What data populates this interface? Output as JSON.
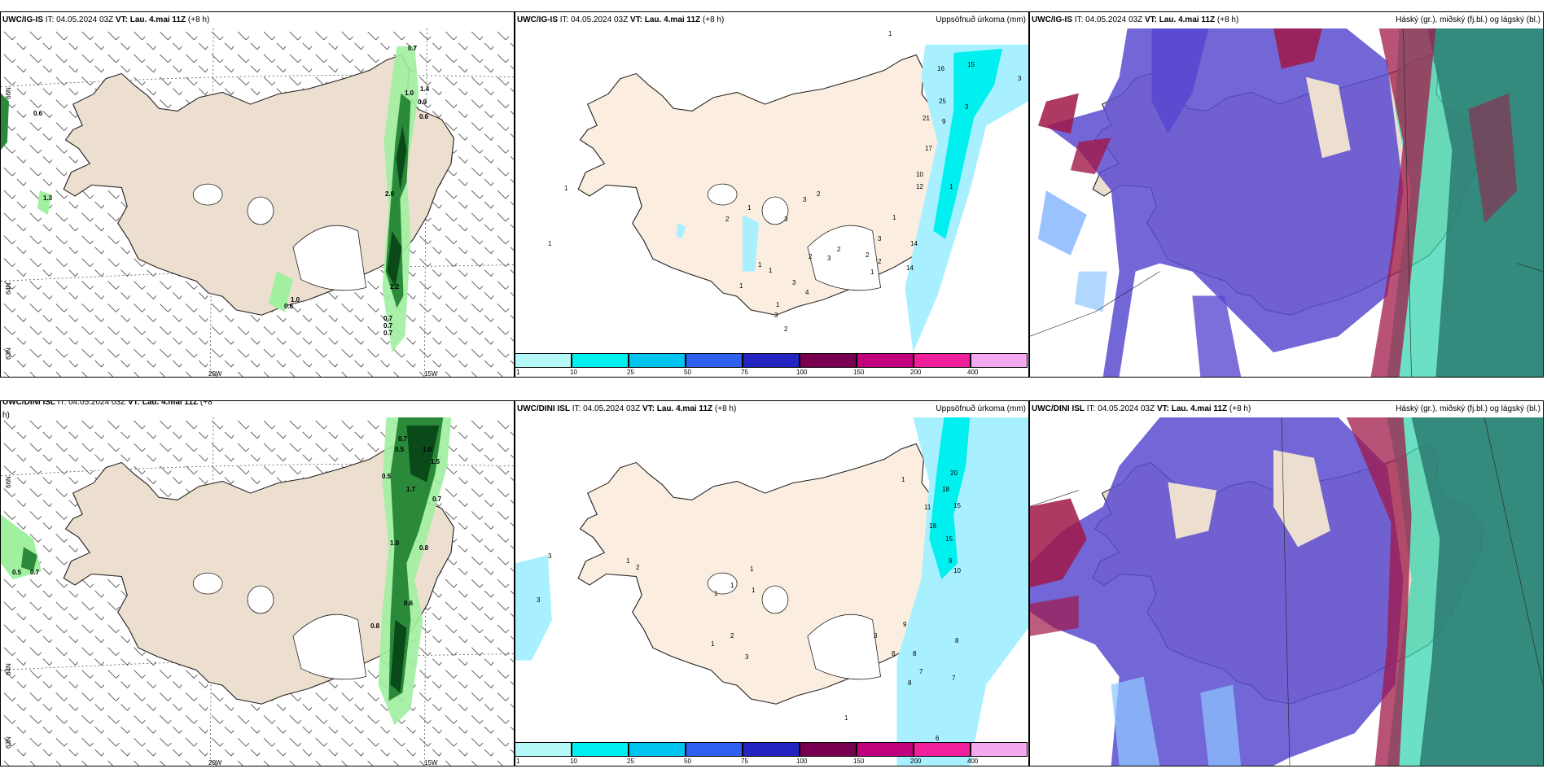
{
  "panels": [
    {
      "header": {
        "model": "UWC/IG-IS",
        "it_label": "IT:",
        "it": "04.05.2024 03Z",
        "vt_label": "VT:",
        "vt": "Lau. 4.mai 11Z",
        "lead": "(+8 h)",
        "right": ""
      },
      "lat_labels": [
        "66N",
        "64N",
        "63N"
      ],
      "lon_labels": [
        "20W",
        "15W"
      ]
    },
    {
      "header": {
        "model": "UWC/IG-IS",
        "it_label": "IT:",
        "it": "04.05.2024 03Z",
        "vt_label": "VT:",
        "vt": "Lau. 4.mai 11Z",
        "lead": "(+8 h)",
        "right": "Uppsöfnuð úrkoma (mm)"
      }
    },
    {
      "header": {
        "model": "UWC/IG-IS",
        "it_label": "IT:",
        "it": "04.05.2024 03Z",
        "vt_label": "VT:",
        "vt": "Lau. 4.mai 11Z",
        "lead": "(+8 h)",
        "right": "Háský (gr.), miðský (fj.bl.) og lágský (bl.)"
      }
    },
    {
      "header": {
        "model": "UWC/DINI ISL",
        "it_label": "IT:",
        "it": "04.05.2024 03Z",
        "vt_label": "VT:",
        "vt": "Lau. 4.mai 11Z",
        "lead": "(+8",
        "right": ""
      },
      "continuation": "h)",
      "lat_labels": [
        "66N",
        "64N",
        "63N"
      ],
      "lon_labels": [
        "20W",
        "15W"
      ]
    },
    {
      "header": {
        "model": "UWC/DINI ISL",
        "it_label": "IT:",
        "it": "04.05.2024 03Z",
        "vt_label": "VT:",
        "vt": "Lau. 4.mai 11Z",
        "lead": "(+8 h)",
        "right": "Uppsöfnuð úrkoma (mm)"
      }
    },
    {
      "header": {
        "model": "UWC/DINI ISL",
        "it_label": "IT:",
        "it": "04.05.2024 03Z",
        "vt_label": "VT:",
        "vt": "Lau. 4.mai 11Z",
        "lead": "(+8 h)",
        "right": "Háský (gr.), miðský (fj.bl.) og lágský (bl.)"
      }
    }
  ],
  "precip_colorbar": {
    "ticks": [
      "1",
      "10",
      "25",
      "50",
      "75",
      "100",
      "150",
      "200",
      "400"
    ],
    "colors": [
      "#b4f8f8",
      "#00f0f0",
      "#00c4f0",
      "#3060f0",
      "#2424c0",
      "#780050",
      "#c0007c",
      "#f0209c",
      "#f4a8f0"
    ]
  },
  "colors": {
    "land": "#eddfd0",
    "land_light": "#fbeee0",
    "rain_light": "#a8f0ff",
    "rain_cyan": "#00f0f0",
    "wind_green_light": "#a0f0a0",
    "wind_green_dark": "#0a5a20",
    "cloud_low": "#5b4bd0",
    "cloud_mid": "#3ad6b0",
    "cloud_high": "#a01848"
  },
  "wind_top": [
    "0.7",
    "1.0",
    "1.4",
    "0.9",
    "0.6",
    "0.6",
    "1.3",
    "2.0",
    "2.2",
    "1.0",
    "0.6",
    "0.7",
    "0.7",
    "0.7"
  ],
  "wind_bottom": [
    "0.7",
    "0.5",
    "1.0",
    "1.5",
    "0.5",
    "1.7",
    "0.7",
    "1.0",
    "0.8",
    "0.5",
    "0.7",
    "0.6",
    "0.8"
  ],
  "precip_top": [
    "1",
    "16",
    "15",
    "3",
    "25",
    "3",
    "21",
    "9",
    "17",
    "10",
    "12",
    "1",
    "1",
    "2",
    "3",
    "1",
    "2",
    "3",
    "3",
    "1",
    "2",
    "2",
    "2",
    "3",
    "2",
    "1",
    "1",
    "1",
    "3",
    "4",
    "1",
    "1",
    "2",
    "3",
    "14",
    "14",
    "1"
  ],
  "precip_bottom": [
    "20",
    "1",
    "18",
    "11",
    "15",
    "18",
    "15",
    "9",
    "10",
    "3",
    "3",
    "1",
    "2",
    "1",
    "1",
    "1",
    "1",
    "2",
    "3",
    "1",
    "9",
    "3",
    "8",
    "8",
    "8",
    "7",
    "7",
    "8",
    "1",
    "6"
  ]
}
